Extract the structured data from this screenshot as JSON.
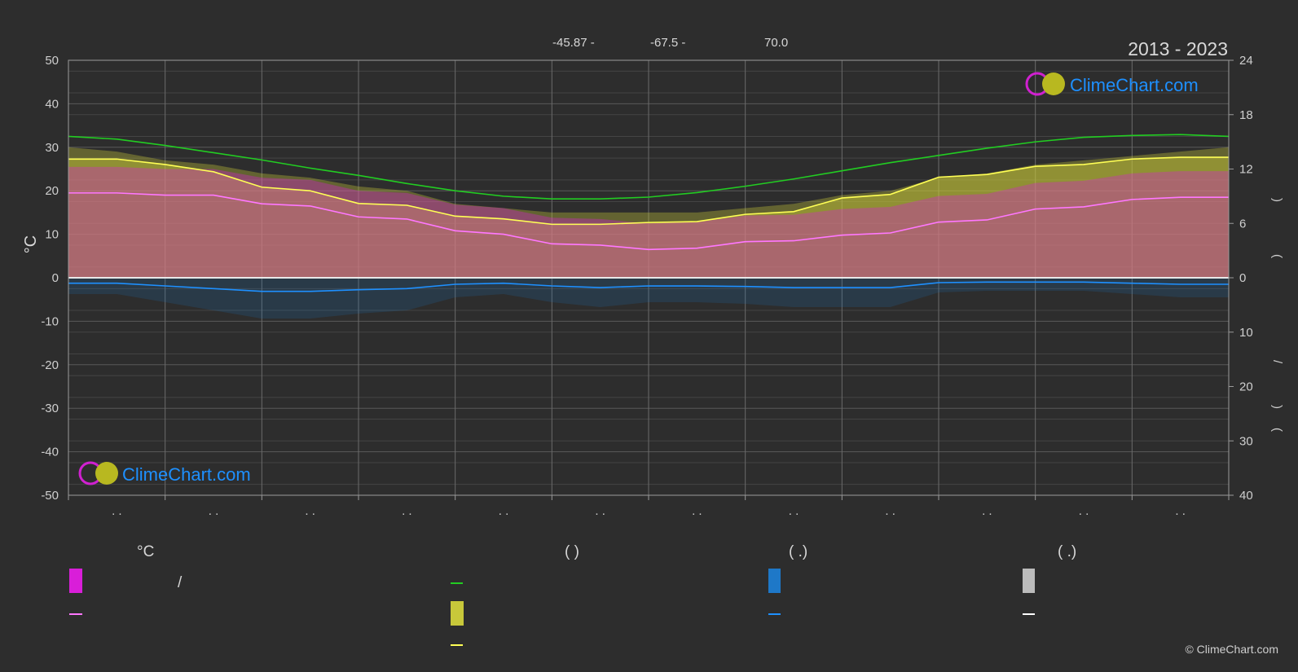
{
  "header": {
    "coords": [
      "-45.87 -",
      "-67.5 -",
      "70.0"
    ],
    "years": "2013 - 2023"
  },
  "brand": {
    "logo_text": "ClimeChart.com",
    "copyright": "© ClimeChart.com"
  },
  "colors": {
    "background": "#2d2d2d",
    "temp_band": "#d91ed9",
    "sunshine_band": "#c8c83a",
    "daylight_line": "#22cc22",
    "sunshine_line": "#ffff55",
    "temp_line": "#ff77ff",
    "rain": "#1e78c8",
    "snow": "#bbbbbb"
  },
  "legend": {
    "col1": {
      "header": "°C",
      "line1": "/"
    },
    "col2": {
      "header": "(          )"
    },
    "col3": {
      "header": "(    .)"
    },
    "col4": {
      "header": "(    .)"
    }
  },
  "chart_data": {
    "type": "area",
    "x": [
      0,
      1,
      2,
      3,
      4,
      5,
      6,
      7,
      8,
      9,
      10,
      11,
      12,
      13,
      14,
      15,
      16,
      17,
      18,
      19,
      20,
      21,
      22,
      23,
      24
    ],
    "x_unit": "half-month index",
    "left_axis": {
      "label": "°C",
      "ticks": [
        50,
        40,
        30,
        20,
        10,
        0,
        -10,
        -20,
        -30,
        -40,
        -50
      ],
      "range": [
        -50,
        50
      ]
    },
    "right_axis_top": {
      "ticks": [
        24,
        18,
        12,
        6,
        0
      ],
      "range": [
        0,
        24
      ],
      "label_fragments": [
        ")",
        "("
      ]
    },
    "right_axis_bottom": {
      "ticks": [
        0,
        10,
        20,
        30,
        40
      ],
      "range": [
        0,
        40
      ],
      "label_fragments": [
        "/",
        ")",
        "("
      ]
    },
    "x_tick_marks": [
      ". .",
      ". .",
      ". .",
      ". .",
      ". .",
      ". .",
      ". .",
      ". .",
      ". .",
      ". .",
      ". .",
      ". ."
    ],
    "grid": true,
    "series": [
      {
        "role": "daylight_hours",
        "axis": "right_top",
        "values": [
          15.6,
          15.3,
          14.6,
          13.8,
          13.0,
          12.1,
          11.3,
          10.4,
          9.6,
          9.0,
          8.7,
          8.7,
          8.9,
          9.4,
          10.1,
          10.9,
          11.8,
          12.7,
          13.5,
          14.3,
          15.0,
          15.5,
          15.7,
          15.8,
          15.6
        ]
      },
      {
        "role": "sunshine_hours",
        "axis": "right_top",
        "values": [
          13.1,
          13.1,
          12.5,
          11.7,
          10.0,
          9.6,
          8.2,
          8.0,
          6.8,
          6.5,
          5.9,
          5.9,
          6.1,
          6.2,
          7.0,
          7.3,
          8.8,
          9.2,
          11.1,
          11.4,
          12.3,
          12.5,
          13.1,
          13.3,
          13.3
        ]
      },
      {
        "role": "mean_temperature",
        "axis": "left",
        "values": [
          19.5,
          19.5,
          19.0,
          19.0,
          17.0,
          16.5,
          14.0,
          13.5,
          10.8,
          10.0,
          7.8,
          7.5,
          6.5,
          6.8,
          8.3,
          8.5,
          9.8,
          10.3,
          12.8,
          13.3,
          15.8,
          16.3,
          18.0,
          18.5,
          18.5
        ]
      },
      {
        "role": "max_temperature_band",
        "axis": "left",
        "values": [
          30,
          29,
          27,
          26,
          24,
          23,
          21,
          20,
          17,
          16,
          15,
          15,
          15,
          15,
          16,
          17,
          19,
          20,
          23,
          24,
          26,
          27,
          28,
          29,
          30
        ]
      },
      {
        "role": "mean_rain",
        "axis": "right_bottom",
        "values": [
          1.0,
          1.0,
          1.5,
          2.0,
          2.5,
          2.5,
          2.2,
          2.0,
          1.2,
          1.0,
          1.5,
          1.8,
          1.5,
          1.5,
          1.6,
          1.8,
          1.8,
          1.8,
          0.9,
          0.8,
          0.8,
          0.8,
          1.0,
          1.2,
          1.2
        ]
      }
    ]
  }
}
